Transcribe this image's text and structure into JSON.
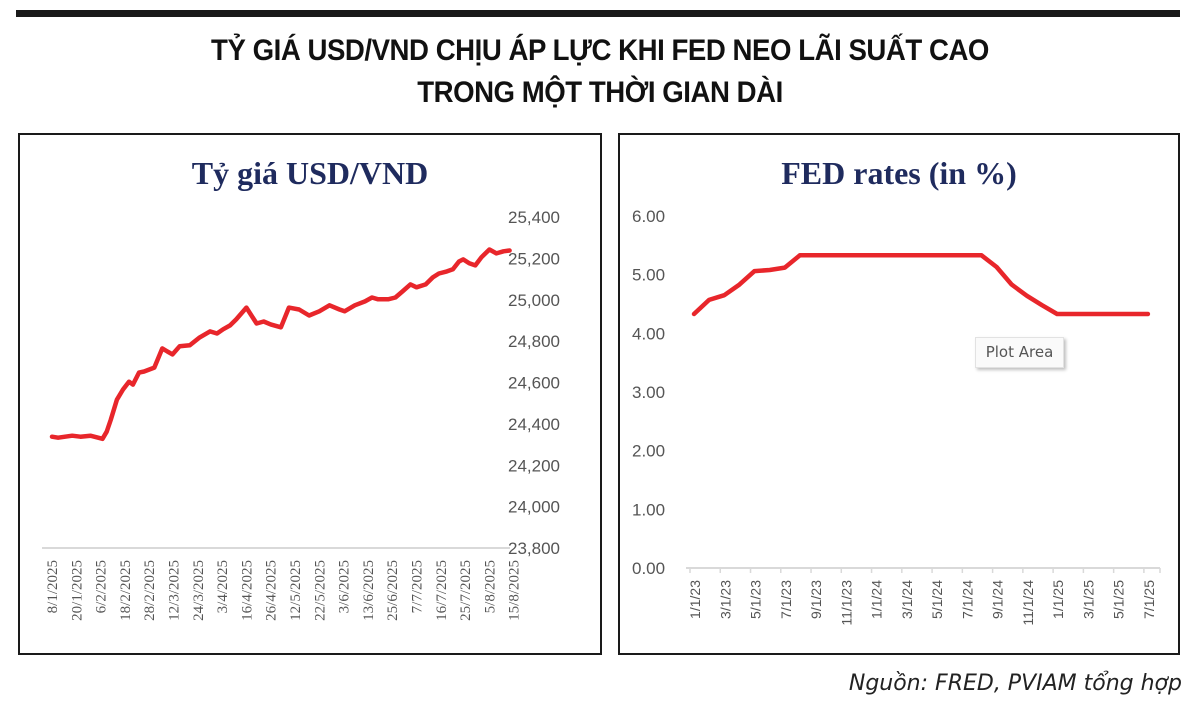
{
  "headline": {
    "line1": "TỶ GIÁ USD/VND CHỊU ÁP LỰC KHI FED NEO LÃI SUẤT CAO",
    "line2": "TRONG MỘT THỜI GIAN DÀI"
  },
  "source": "Nguồn: FRED, PVIAM tổng hợp",
  "tooltip": "Plot Area",
  "colors": {
    "line": "#e8262b",
    "title": "#1f2b5e",
    "axis": "#d9d9d9",
    "tick": "#555555"
  },
  "chart_data": [
    {
      "type": "line",
      "title": "Tỷ giá USD/VND",
      "xlabel": "",
      "ylabel": "",
      "ylim": [
        23800,
        25400
      ],
      "yticks": [
        "25,400",
        "25,200",
        "25,000",
        "24,800",
        "24,600",
        "24,400",
        "24,200",
        "24,000",
        "23,800"
      ],
      "ytick_values": [
        25400,
        25200,
        25000,
        24800,
        24600,
        24400,
        24200,
        24000,
        23800
      ],
      "y_axis_position": "right",
      "grid": false,
      "x_tick_labels": [
        "8/1/2025",
        "20/1/2025",
        "6/2/2025",
        "18/2/2025",
        "28/2/2025",
        "12/3/2025",
        "24/3/2025",
        "3/4/2025",
        "16/4/2025",
        "26/4/2025",
        "12/5/2025",
        "22/5/2025",
        "3/6/2025",
        "13/6/2025",
        "25/6/2025",
        "7/7/2025",
        "16/7/2025",
        "25/7/2025",
        "5/8/2025",
        "15/8/2025"
      ],
      "series": [
        {
          "name": "USD/VND",
          "x_index": [
            0,
            0.25,
            0.54,
            0.83,
            1.17,
            1.58,
            2.08,
            2.25,
            2.42,
            2.67,
            2.92,
            3.17,
            3.33,
            3.58,
            3.79,
            4.21,
            4.54,
            4.75,
            4.96,
            5.25,
            5.67,
            6.08,
            6.5,
            6.79,
            7.04,
            7.33,
            7.58,
            8.0,
            8.42,
            8.71,
            9.0,
            9.42,
            9.75,
            10.17,
            10.58,
            11.0,
            11.42,
            11.83,
            12.04,
            12.46,
            12.88,
            13.17,
            13.42,
            13.83,
            14.13,
            14.42,
            14.75,
            15.0,
            15.38,
            15.67,
            15.92,
            16.25,
            16.5,
            16.75,
            16.92,
            17.17,
            17.42,
            17.67,
            18.0,
            18.29,
            18.58,
            18.83
          ],
          "values": [
            24338,
            24333,
            24338,
            24343,
            24338,
            24343,
            24328,
            24362,
            24420,
            24517,
            24566,
            24604,
            24590,
            24648,
            24653,
            24672,
            24765,
            24750,
            24736,
            24775,
            24780,
            24818,
            24847,
            24837,
            24857,
            24876,
            24905,
            24962,
            24885,
            24895,
            24881,
            24867,
            24962,
            24953,
            24924,
            24944,
            24973,
            24953,
            24944,
            24973,
            24992,
            25011,
            25002,
            25002,
            25011,
            25040,
            25074,
            25060,
            25074,
            25108,
            25127,
            25137,
            25147,
            25185,
            25195,
            25176,
            25166,
            25205,
            25243,
            25224,
            25234,
            25238
          ]
        }
      ]
    },
    {
      "type": "line",
      "title": "FED rates (in %)",
      "xlabel": "",
      "ylabel": "",
      "ylim": [
        0,
        6
      ],
      "yticks": [
        "6.00",
        "5.00",
        "4.00",
        "3.00",
        "2.00",
        "1.00",
        "0.00"
      ],
      "ytick_values": [
        6,
        5,
        4,
        3,
        2,
        1,
        0
      ],
      "y_axis_position": "left",
      "grid": false,
      "x_tick_labels": [
        "1/1/23",
        "3/1/23",
        "5/1/23",
        "7/1/23",
        "9/1/23",
        "11/1/23",
        "1/1/24",
        "3/1/24",
        "5/1/24",
        "7/1/24",
        "9/1/24",
        "11/1/24",
        "1/1/25",
        "3/1/25",
        "5/1/25",
        "7/1/25"
      ],
      "x": [
        "1/23",
        "2/23",
        "3/23",
        "4/23",
        "5/23",
        "6/23",
        "7/23",
        "8/23",
        "9/23",
        "10/23",
        "11/23",
        "12/23",
        "1/24",
        "2/24",
        "3/24",
        "4/24",
        "5/24",
        "6/24",
        "7/24",
        "8/24",
        "9/24",
        "10/24",
        "11/24",
        "12/24",
        "1/25",
        "2/25",
        "3/25",
        "4/25",
        "5/25",
        "6/25",
        "7/25"
      ],
      "series": [
        {
          "name": "FED rates",
          "values": [
            4.33,
            4.57,
            4.65,
            4.83,
            5.06,
            5.08,
            5.12,
            5.33,
            5.33,
            5.33,
            5.33,
            5.33,
            5.33,
            5.33,
            5.33,
            5.33,
            5.33,
            5.33,
            5.33,
            5.33,
            5.13,
            4.83,
            4.64,
            4.48,
            4.33,
            4.33,
            4.33,
            4.33,
            4.33,
            4.33,
            4.33
          ]
        }
      ]
    }
  ]
}
